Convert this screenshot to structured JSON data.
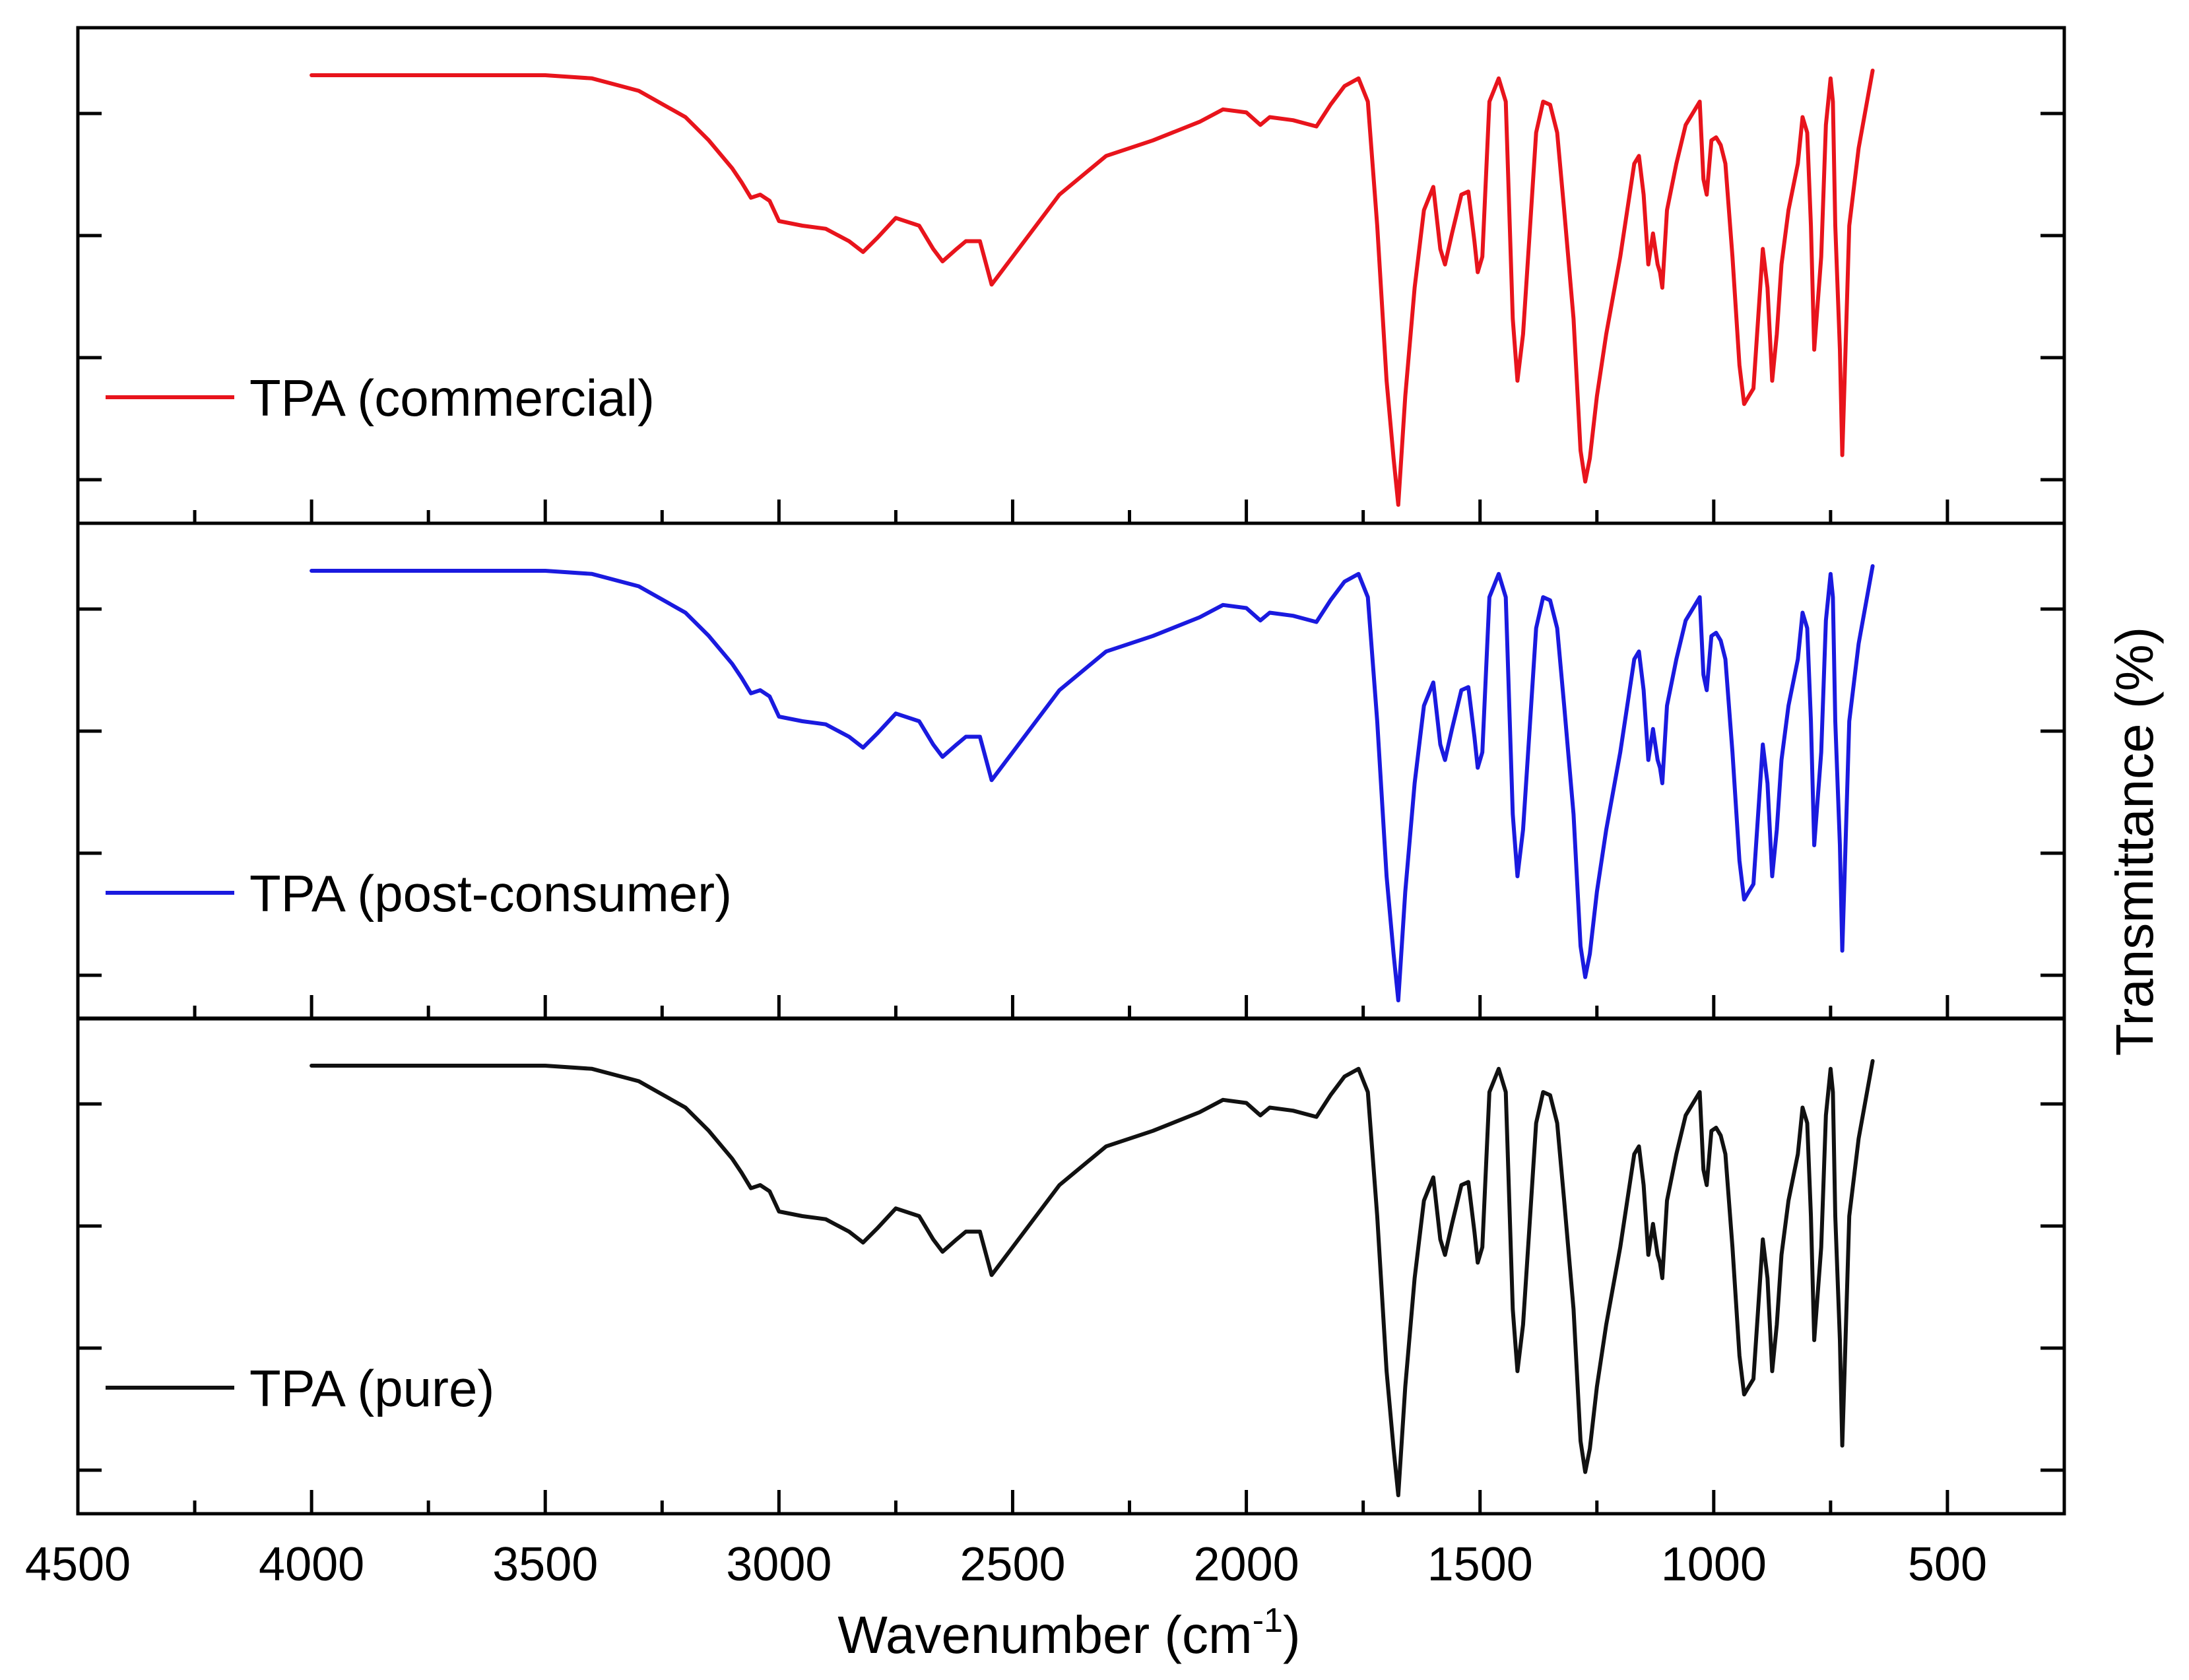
{
  "chart_data": {
    "type": "line",
    "xlabel": "Wavenumber (cm",
    "xlabel_superscript": "-1",
    "xlabel_suffix": ")",
    "ylabel": "Transmittance (%)",
    "xlim": [
      4500,
      250
    ],
    "x_reversed": true,
    "x_ticks": [
      4500,
      4000,
      3500,
      3000,
      2500,
      2000,
      1500,
      1000,
      500
    ],
    "x_tick_labels": [
      "4500",
      "4000",
      "3500",
      "3000",
      "2500",
      "2000",
      "1500",
      "1000",
      "500"
    ],
    "y_tick_labels_shown": false,
    "stacked_panels": true,
    "legend_position": "bottom-left of each panel",
    "series": [
      {
        "name": "TPA (commercial)",
        "color": "#e8141c",
        "x": [
          4000,
          3900,
          3700,
          3500,
          3400,
          3300,
          3200,
          3150,
          3100,
          3080,
          3060,
          3040,
          3020,
          3000,
          2950,
          2900,
          2850,
          2820,
          2790,
          2750,
          2700,
          2670,
          2650,
          2620,
          2600,
          2570,
          2545,
          2500,
          2400,
          2300,
          2200,
          2100,
          2050,
          2000,
          1970,
          1950,
          1900,
          1850,
          1820,
          1790,
          1760,
          1740,
          1720,
          1700,
          1685,
          1675,
          1660,
          1640,
          1620,
          1600,
          1585,
          1575,
          1560,
          1540,
          1525,
          1512,
          1505,
          1495,
          1480,
          1460,
          1445,
          1430,
          1420,
          1408,
          1395,
          1380,
          1365,
          1350,
          1335,
          1320,
          1300,
          1285,
          1275,
          1265,
          1250,
          1230,
          1200,
          1170,
          1160,
          1150,
          1140,
          1130,
          1120,
          1115,
          1110,
          1100,
          1080,
          1060,
          1040,
          1030,
          1022,
          1015,
          1005,
          995,
          985,
          975,
          960,
          945,
          935,
          925,
          915,
          905,
          895,
          885,
          875,
          865,
          855,
          840,
          820,
          810,
          800,
          792,
          785,
          770,
          760,
          750,
          745,
          740,
          730,
          725,
          720,
          710,
          700,
          690,
          660
        ],
        "y": [
          3,
          3,
          3,
          3,
          5,
          13,
          30,
          45,
          63,
          72,
          82,
          80,
          84,
          97,
          100,
          102,
          110,
          117,
          108,
          95,
          100,
          115,
          123,
          115,
          110,
          110,
          138,
          120,
          80,
          55,
          45,
          33,
          25,
          27,
          35,
          30,
          32,
          36,
          22,
          10,
          5,
          20,
          100,
          200,
          250,
          280,
          210,
          140,
          90,
          75,
          115,
          125,
          105,
          80,
          78,
          110,
          130,
          120,
          20,
          5,
          20,
          160,
          200,
          170,
          110,
          40,
          20,
          22,
          40,
          90,
          160,
          245,
          265,
          250,
          210,
          170,
          120,
          60,
          55,
          80,
          125,
          105,
          125,
          130,
          140,
          90,
          60,
          35,
          25,
          20,
          70,
          80,
          45,
          43,
          48,
          60,
          120,
          190,
          215,
          210,
          205,
          160,
          115,
          140,
          200,
          170,
          125,
          90,
          60,
          30,
          40,
          100,
          180,
          120,
          35,
          5,
          20,
          100,
          180,
          248,
          200,
          100,
          75,
          50,
          0
        ]
      },
      {
        "name": "TPA (post-consumer)",
        "color": "#1a1adf",
        "x": [
          4000,
          3900,
          3700,
          3500,
          3400,
          3300,
          3200,
          3150,
          3100,
          3080,
          3060,
          3040,
          3020,
          3000,
          2950,
          2900,
          2850,
          2820,
          2790,
          2750,
          2700,
          2670,
          2650,
          2620,
          2600,
          2570,
          2545,
          2500,
          2400,
          2300,
          2200,
          2100,
          2050,
          2000,
          1970,
          1950,
          1900,
          1850,
          1820,
          1790,
          1760,
          1740,
          1720,
          1700,
          1685,
          1675,
          1660,
          1640,
          1620,
          1600,
          1585,
          1575,
          1560,
          1540,
          1525,
          1512,
          1505,
          1495,
          1480,
          1460,
          1445,
          1430,
          1420,
          1408,
          1395,
          1380,
          1365,
          1350,
          1335,
          1320,
          1300,
          1285,
          1275,
          1265,
          1250,
          1230,
          1200,
          1170,
          1160,
          1150,
          1140,
          1130,
          1120,
          1115,
          1110,
          1100,
          1080,
          1060,
          1040,
          1030,
          1022,
          1015,
          1005,
          995,
          985,
          975,
          960,
          945,
          935,
          925,
          915,
          905,
          895,
          885,
          875,
          865,
          855,
          840,
          820,
          810,
          800,
          792,
          785,
          770,
          760,
          750,
          745,
          740,
          730,
          725,
          720,
          710,
          700,
          690,
          660
        ],
        "y": [
          3,
          3,
          3,
          3,
          5,
          13,
          30,
          45,
          63,
          72,
          82,
          80,
          84,
          97,
          100,
          102,
          110,
          117,
          108,
          95,
          100,
          115,
          123,
          115,
          110,
          110,
          138,
          120,
          80,
          55,
          45,
          33,
          25,
          27,
          35,
          30,
          32,
          36,
          22,
          10,
          5,
          20,
          100,
          200,
          250,
          280,
          210,
          140,
          90,
          75,
          115,
          125,
          105,
          80,
          78,
          110,
          130,
          120,
          20,
          5,
          20,
          160,
          200,
          170,
          110,
          40,
          20,
          22,
          40,
          90,
          160,
          245,
          265,
          250,
          210,
          170,
          120,
          60,
          55,
          80,
          125,
          105,
          125,
          130,
          140,
          90,
          60,
          35,
          25,
          20,
          70,
          80,
          45,
          43,
          48,
          60,
          120,
          190,
          215,
          210,
          205,
          160,
          115,
          140,
          200,
          170,
          125,
          90,
          60,
          30,
          40,
          100,
          180,
          120,
          35,
          5,
          20,
          100,
          180,
          248,
          200,
          100,
          75,
          50,
          0
        ]
      },
      {
        "name": "TPA (pure)",
        "color": "#111111",
        "x": [
          4000,
          3900,
          3700,
          3500,
          3400,
          3300,
          3200,
          3150,
          3100,
          3080,
          3060,
          3040,
          3020,
          3000,
          2950,
          2900,
          2850,
          2820,
          2790,
          2750,
          2700,
          2670,
          2650,
          2620,
          2600,
          2570,
          2545,
          2500,
          2400,
          2300,
          2200,
          2100,
          2050,
          2000,
          1970,
          1950,
          1900,
          1850,
          1820,
          1790,
          1760,
          1740,
          1720,
          1700,
          1685,
          1675,
          1660,
          1640,
          1620,
          1600,
          1585,
          1575,
          1560,
          1540,
          1525,
          1512,
          1505,
          1495,
          1480,
          1460,
          1445,
          1430,
          1420,
          1408,
          1395,
          1380,
          1365,
          1350,
          1335,
          1320,
          1300,
          1285,
          1275,
          1265,
          1250,
          1230,
          1200,
          1170,
          1160,
          1150,
          1140,
          1130,
          1120,
          1115,
          1110,
          1100,
          1080,
          1060,
          1040,
          1030,
          1022,
          1015,
          1005,
          995,
          985,
          975,
          960,
          945,
          935,
          925,
          915,
          905,
          895,
          885,
          875,
          865,
          855,
          840,
          820,
          810,
          800,
          792,
          785,
          770,
          760,
          750,
          745,
          740,
          730,
          725,
          720,
          710,
          700,
          690,
          660
        ],
        "y": [
          3,
          3,
          3,
          3,
          5,
          13,
          30,
          45,
          63,
          72,
          82,
          80,
          84,
          97,
          100,
          102,
          110,
          117,
          108,
          95,
          100,
          115,
          123,
          115,
          110,
          110,
          138,
          120,
          80,
          55,
          45,
          33,
          25,
          27,
          35,
          30,
          32,
          36,
          22,
          10,
          5,
          20,
          100,
          200,
          250,
          280,
          210,
          140,
          90,
          75,
          115,
          125,
          105,
          80,
          78,
          110,
          130,
          120,
          20,
          5,
          20,
          160,
          200,
          170,
          110,
          40,
          20,
          22,
          40,
          90,
          160,
          245,
          265,
          250,
          210,
          170,
          120,
          60,
          55,
          80,
          125,
          105,
          125,
          130,
          140,
          90,
          60,
          35,
          25,
          20,
          70,
          80,
          45,
          43,
          48,
          60,
          120,
          190,
          215,
          210,
          205,
          160,
          115,
          140,
          200,
          170,
          125,
          90,
          60,
          30,
          40,
          100,
          180,
          120,
          35,
          5,
          20,
          100,
          180,
          248,
          200,
          100,
          75,
          50,
          0
        ]
      }
    ]
  }
}
